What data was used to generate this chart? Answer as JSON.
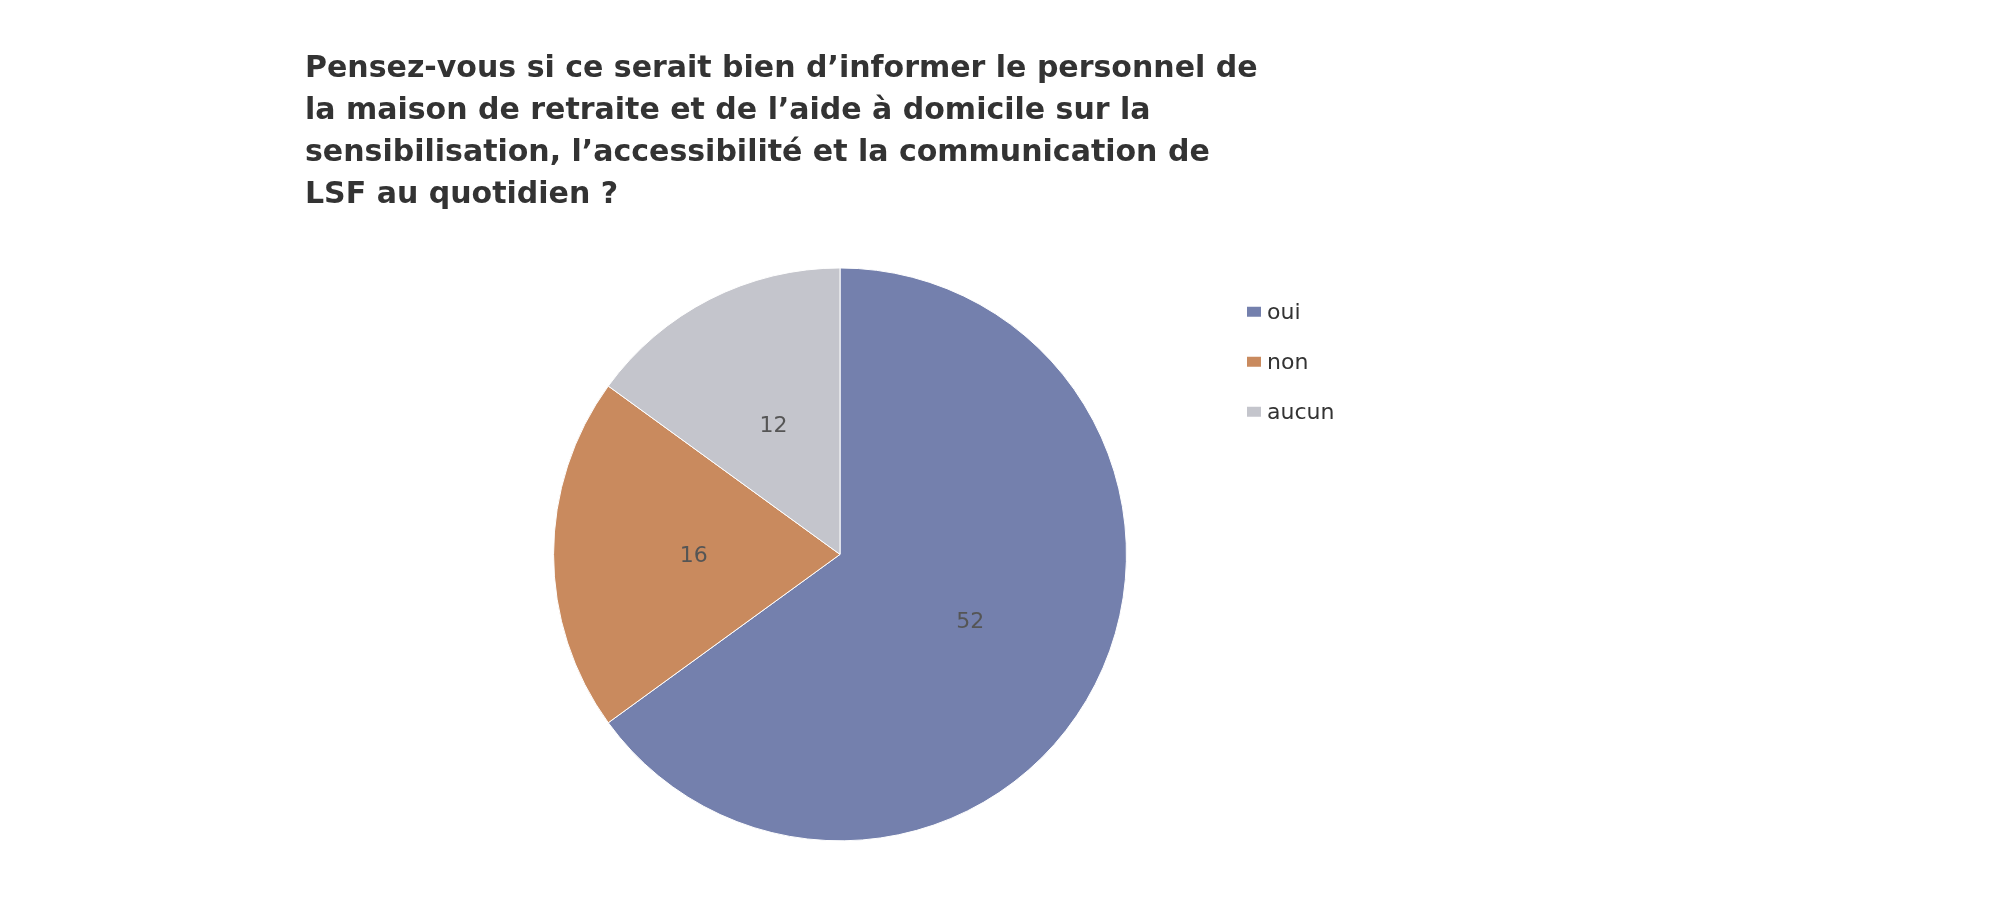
{
  "chart_data": {
    "type": "pie",
    "title": "Pensez-vous si ce serait bien d’informer le personnel de la maison de retraite et de l’aide à domicile sur la sensibilisation, l’accessibilité et la communication de LSF au quotidien ?",
    "categories": [
      "oui",
      "non",
      "aucun"
    ],
    "values": [
      52,
      16,
      12
    ],
    "colors": [
      "#7480ad",
      "#c98a5e",
      "#c4c5cc"
    ],
    "data_labels": true,
    "legend": "right"
  }
}
